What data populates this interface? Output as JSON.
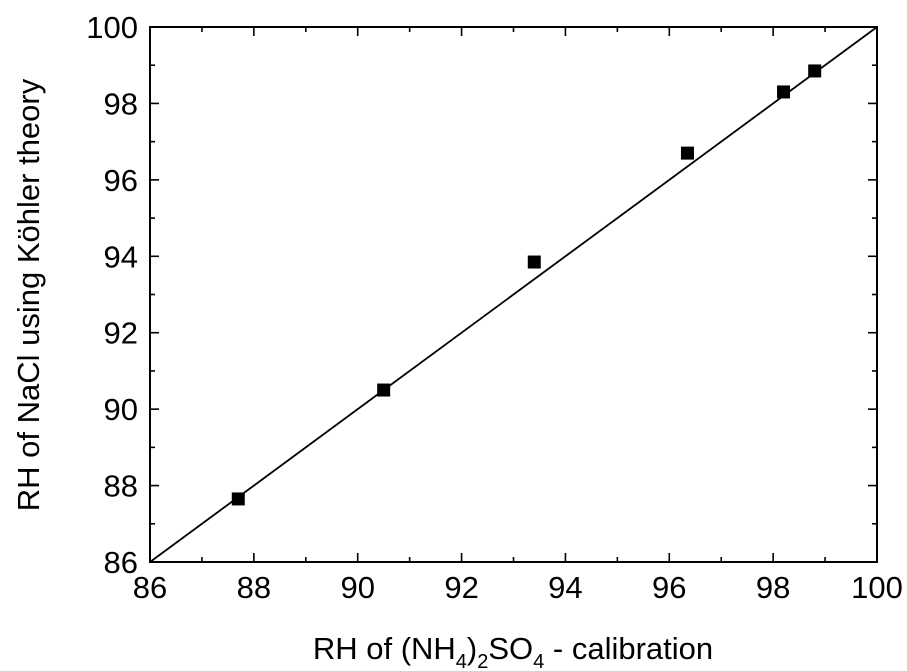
{
  "chart_data": {
    "type": "scatter",
    "xlabel": {
      "prefix": "RH of (NH",
      "sub1": "4",
      "mid1": ")",
      "sub2": "2",
      "mid2": "SO",
      "sub3": "4",
      "suffix": " - calibration"
    },
    "ylabel": "RH of NaCl using Köhler theory",
    "xlim": [
      86,
      100
    ],
    "ylim": [
      86,
      100
    ],
    "xticks": [
      "86",
      "88",
      "90",
      "92",
      "94",
      "96",
      "98",
      "100"
    ],
    "yticks": [
      "86",
      "88",
      "90",
      "92",
      "94",
      "96",
      "98",
      "100"
    ],
    "points": [
      {
        "x": 87.7,
        "y": 87.65
      },
      {
        "x": 90.5,
        "y": 90.5
      },
      {
        "x": 93.4,
        "y": 93.85
      },
      {
        "x": 96.35,
        "y": 96.7
      },
      {
        "x": 98.2,
        "y": 98.3
      },
      {
        "x": 98.8,
        "y": 98.85
      }
    ],
    "reference_line": {
      "x": [
        86,
        100
      ],
      "y": [
        86,
        100
      ]
    },
    "grid": false,
    "legend": "none",
    "marker_color": "#000000",
    "line_color": "#000000"
  }
}
